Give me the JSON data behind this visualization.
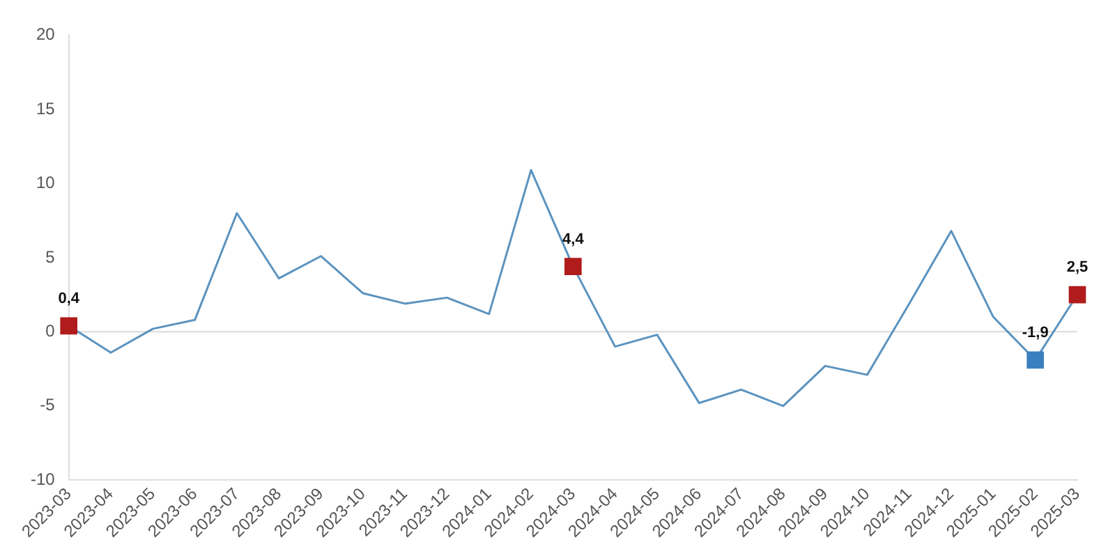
{
  "chart_data": {
    "type": "line",
    "categories": [
      "2023-03",
      "2023-04",
      "2023-05",
      "2023-06",
      "2023-07",
      "2023-08",
      "2023-09",
      "2023-10",
      "2023-11",
      "2023-12",
      "2024-01",
      "2024-02",
      "2024-03",
      "2024-04",
      "2024-05",
      "2024-06",
      "2024-07",
      "2024-08",
      "2024-09",
      "2024-10",
      "2024-11",
      "2024-12",
      "2025-01",
      "2025-02",
      "2025-03"
    ],
    "series": [
      {
        "color": "#5b93bf",
        "marker": "none",
        "values": [
          0.4,
          -1.4,
          0.2,
          0.8,
          8.0,
          3.6,
          5.1,
          2.6,
          1.9,
          2.3,
          1.2,
          10.9,
          4.4,
          -1.0,
          -0.2,
          -4.8,
          -3.9,
          -5.0,
          -2.3,
          -2.9,
          1.9,
          6.8,
          1.0,
          -1.9,
          2.5
        ]
      },
      {
        "type": "scatter",
        "marker": "square",
        "values": [
          0.4,
          null,
          null,
          null,
          null,
          null,
          null,
          null,
          null,
          null,
          null,
          null,
          4.4,
          null,
          null,
          null,
          null,
          null,
          null,
          null,
          null,
          null,
          null,
          -1.9,
          2.5
        ],
        "colors": [
          "#b01c1c",
          null,
          null,
          null,
          null,
          null,
          null,
          null,
          null,
          null,
          null,
          null,
          "#b01c1c",
          null,
          null,
          null,
          null,
          null,
          null,
          null,
          null,
          null,
          null,
          "#3a7fc0",
          "#b01c1c"
        ],
        "value_labels": [
          "0,4",
          null,
          null,
          null,
          null,
          null,
          null,
          null,
          null,
          null,
          null,
          null,
          "4,4",
          null,
          null,
          null,
          null,
          null,
          null,
          null,
          null,
          null,
          null,
          "-1,9",
          "2,5"
        ]
      }
    ],
    "ylim": [
      -10,
      20
    ],
    "yticks": [
      -10,
      -5,
      0,
      5,
      10,
      15,
      20
    ],
    "grid": false,
    "legend": false,
    "ref_lines": [
      {
        "axis": "y",
        "value": 0,
        "color": "#d9d9d9"
      }
    ]
  }
}
